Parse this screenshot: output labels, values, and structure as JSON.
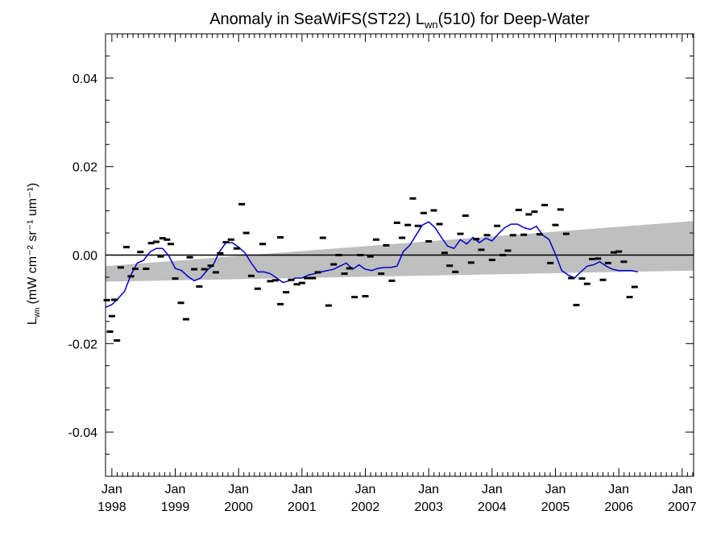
{
  "chart_data": {
    "type": "scatter",
    "title_main": "Anomaly in SeaWiFS(ST22) L",
    "title_sub": "wn",
    "title_tail": "(510) for Deep-Water",
    "ylabel_main": "L",
    "ylabel_sub": "wn",
    "ylabel_units": "(mW cm⁻² sr⁻¹ um⁻¹)",
    "ylim": [
      -0.05,
      0.05
    ],
    "xlim": [
      1997.9,
      2007.18
    ],
    "y_ticks": [
      {
        "value": -0.04,
        "label": "-0.04"
      },
      {
        "value": -0.02,
        "label": "-0.02"
      },
      {
        "value": 0.0,
        "label": "0.00"
      },
      {
        "value": 0.02,
        "label": "0.02"
      },
      {
        "value": 0.04,
        "label": "0.04"
      }
    ],
    "x_ticks": [
      {
        "value": 1998,
        "month": "Jan",
        "year": "1998"
      },
      {
        "value": 1999,
        "month": "Jan",
        "year": "1999"
      },
      {
        "value": 2000,
        "month": "Jan",
        "year": "2000"
      },
      {
        "value": 2001,
        "month": "Jan",
        "year": "2001"
      },
      {
        "value": 2002,
        "month": "Jan",
        "year": "2002"
      },
      {
        "value": 2003,
        "month": "Jan",
        "year": "2003"
      },
      {
        "value": 2004,
        "month": "Jan",
        "year": "2004"
      },
      {
        "value": 2005,
        "month": "Jan",
        "year": "2005"
      },
      {
        "value": 2006,
        "month": "Jan",
        "year": "2006"
      },
      {
        "value": 2007,
        "month": "Jan",
        "year": "2007"
      }
    ],
    "points": [
      [
        1997.92,
        -0.0102
      ],
      [
        1997.97,
        -0.0173
      ],
      [
        1998.0,
        -0.0138
      ],
      [
        1998.04,
        -0.0101
      ],
      [
        1998.08,
        -0.0193
      ],
      [
        1998.14,
        -0.0028
      ],
      [
        1998.23,
        0.0018
      ],
      [
        1998.3,
        -0.0048
      ],
      [
        1998.37,
        -0.0031
      ],
      [
        1998.45,
        0.0007
      ],
      [
        1998.54,
        -0.0031
      ],
      [
        1998.62,
        0.0027
      ],
      [
        1998.7,
        0.003
      ],
      [
        1998.77,
        -0.0003
      ],
      [
        1998.8,
        0.0038
      ],
      [
        1998.87,
        0.0035
      ],
      [
        1998.93,
        0.0025
      ],
      [
        1999.0,
        -0.0053
      ],
      [
        1999.09,
        -0.0108
      ],
      [
        1999.17,
        -0.0145
      ],
      [
        1999.23,
        -0.0005
      ],
      [
        1999.3,
        -0.0032
      ],
      [
        1999.38,
        -0.0071
      ],
      [
        1999.46,
        -0.0032
      ],
      [
        1999.56,
        -0.0024
      ],
      [
        1999.64,
        -0.0039
      ],
      [
        1999.71,
        0.0004
      ],
      [
        1999.8,
        0.0029
      ],
      [
        1999.88,
        0.0035
      ],
      [
        1999.97,
        0.0015
      ],
      [
        2000.05,
        0.0115
      ],
      [
        2000.12,
        0.005
      ],
      [
        2000.2,
        -0.0047
      ],
      [
        2000.3,
        -0.0076
      ],
      [
        2000.38,
        0.0025
      ],
      [
        2000.5,
        -0.0059
      ],
      [
        2000.58,
        -0.0057
      ],
      [
        2000.66,
        0.004
      ],
      [
        2000.66,
        -0.0111
      ],
      [
        2000.75,
        -0.0084
      ],
      [
        2000.83,
        -0.0056
      ],
      [
        2000.92,
        -0.0066
      ],
      [
        2001.0,
        -0.0063
      ],
      [
        2001.08,
        -0.0052
      ],
      [
        2001.17,
        -0.0052
      ],
      [
        2001.25,
        -0.0039
      ],
      [
        2001.33,
        0.0039
      ],
      [
        2001.42,
        -0.0114
      ],
      [
        2001.5,
        -0.0021
      ],
      [
        2001.58,
        0.0
      ],
      [
        2001.67,
        -0.0042
      ],
      [
        2001.75,
        -0.003
      ],
      [
        2001.83,
        -0.0095
      ],
      [
        2001.92,
        0.0
      ],
      [
        2002.0,
        -0.0093
      ],
      [
        2002.08,
        -0.0003
      ],
      [
        2002.17,
        0.0035
      ],
      [
        2002.25,
        -0.0042
      ],
      [
        2002.33,
        0.0022
      ],
      [
        2002.42,
        -0.0058
      ],
      [
        2002.5,
        0.0073
      ],
      [
        2002.58,
        0.0039
      ],
      [
        2002.67,
        0.0068
      ],
      [
        2002.75,
        0.0128
      ],
      [
        2002.83,
        0.0066
      ],
      [
        2002.92,
        0.0095
      ],
      [
        2003.0,
        0.0031
      ],
      [
        2003.08,
        0.0101
      ],
      [
        2003.17,
        0.007
      ],
      [
        2003.25,
        0.0005
      ],
      [
        2003.33,
        -0.0024
      ],
      [
        2003.42,
        -0.0038
      ],
      [
        2003.5,
        0.0048
      ],
      [
        2003.58,
        0.0089
      ],
      [
        2003.67,
        -0.0017
      ],
      [
        2003.75,
        0.0036
      ],
      [
        2003.83,
        0.0012
      ],
      [
        2003.92,
        0.0045
      ],
      [
        2004.0,
        -0.0011
      ],
      [
        2004.08,
        0.0066
      ],
      [
        2004.17,
        0.0
      ],
      [
        2004.25,
        0.001
      ],
      [
        2004.33,
        0.0045
      ],
      [
        2004.42,
        0.0102
      ],
      [
        2004.5,
        0.0046
      ],
      [
        2004.58,
        0.0092
      ],
      [
        2004.67,
        0.0098
      ],
      [
        2004.75,
        0.0047
      ],
      [
        2004.83,
        0.0113
      ],
      [
        2004.92,
        -0.0018
      ],
      [
        2005.0,
        0.0068
      ],
      [
        2005.08,
        0.0103
      ],
      [
        2005.17,
        0.0048
      ],
      [
        2005.25,
        -0.0052
      ],
      [
        2005.33,
        -0.0113
      ],
      [
        2005.42,
        -0.0053
      ],
      [
        2005.5,
        -0.0065
      ],
      [
        2005.58,
        -0.0009
      ],
      [
        2005.67,
        -0.0008
      ],
      [
        2005.75,
        -0.0056
      ],
      [
        2005.83,
        -0.0018
      ],
      [
        2005.92,
        0.0006
      ],
      [
        2006.0,
        0.0008
      ],
      [
        2006.08,
        -0.0015
      ],
      [
        2006.17,
        -0.0095
      ],
      [
        2006.25,
        -0.0072
      ]
    ],
    "running_mean": {
      "color": "#0000cc",
      "x": [
        1997.9,
        1998.0,
        1998.1,
        1998.2,
        1998.3,
        1998.4,
        1998.5,
        1998.6,
        1998.7,
        1998.8,
        1998.9,
        1999.0,
        1999.1,
        1999.2,
        1999.3,
        1999.4,
        1999.5,
        1999.6,
        1999.7,
        1999.8,
        1999.9,
        2000.0,
        2000.1,
        2000.2,
        2000.3,
        2000.4,
        2000.5,
        2000.6,
        2000.7,
        2000.8,
        2000.9,
        2001.0,
        2001.1,
        2001.2,
        2001.3,
        2001.4,
        2001.5,
        2001.6,
        2001.7,
        2001.8,
        2001.9,
        2002.0,
        2002.1,
        2002.2,
        2002.3,
        2002.4,
        2002.5,
        2002.6,
        2002.7,
        2002.8,
        2002.9,
        2003.0,
        2003.1,
        2003.2,
        2003.3,
        2003.4,
        2003.5,
        2003.6,
        2003.7,
        2003.8,
        2003.9,
        2004.0,
        2004.1,
        2004.2,
        2004.3,
        2004.4,
        2004.5,
        2004.6,
        2004.7,
        2004.8,
        2004.9,
        2005.0,
        2005.1,
        2005.2,
        2005.3,
        2005.4,
        2005.5,
        2005.6,
        2005.7,
        2005.8,
        2005.9,
        2006.0,
        2006.1,
        2006.2,
        2006.3
      ],
      "y": [
        -0.0118,
        -0.0112,
        -0.0098,
        -0.0082,
        -0.0045,
        -0.0018,
        -0.0012,
        0.0007,
        0.0015,
        0.0015,
        -0.0002,
        -0.003,
        -0.0035,
        -0.0048,
        -0.0058,
        -0.0052,
        -0.0035,
        -0.0022,
        0.0008,
        0.0028,
        0.0028,
        0.0018,
        0.0005,
        -0.0018,
        -0.0038,
        -0.0038,
        -0.0042,
        -0.0052,
        -0.0062,
        -0.0058,
        -0.0052,
        -0.0052,
        -0.0045,
        -0.0042,
        -0.0038,
        -0.0035,
        -0.0032,
        -0.0025,
        -0.0018,
        -0.0032,
        -0.0022,
        -0.0032,
        -0.0035,
        -0.003,
        -0.0028,
        -0.0028,
        -0.0025,
        0.0008,
        0.0022,
        0.0045,
        0.0068,
        0.0075,
        0.0062,
        0.004,
        0.002,
        0.0015,
        0.0035,
        0.0025,
        0.004,
        0.0028,
        0.0038,
        0.0032,
        0.0048,
        0.0062,
        0.007,
        0.007,
        0.0062,
        0.0058,
        0.0065,
        0.0045,
        0.0035,
        0.0002,
        -0.0035,
        -0.0045,
        -0.0052,
        -0.0038,
        -0.0025,
        -0.0022,
        -0.0015,
        -0.0025,
        -0.0032,
        -0.0035,
        -0.0035,
        -0.0035,
        -0.0038
      ]
    },
    "trend_band": {
      "color": "#bfbfbf",
      "x": [
        1997.9,
        2007.18
      ],
      "lower": [
        -0.006,
        -0.0035
      ],
      "upper": [
        -0.0025,
        0.0077
      ]
    },
    "zero_line": 0.0
  }
}
